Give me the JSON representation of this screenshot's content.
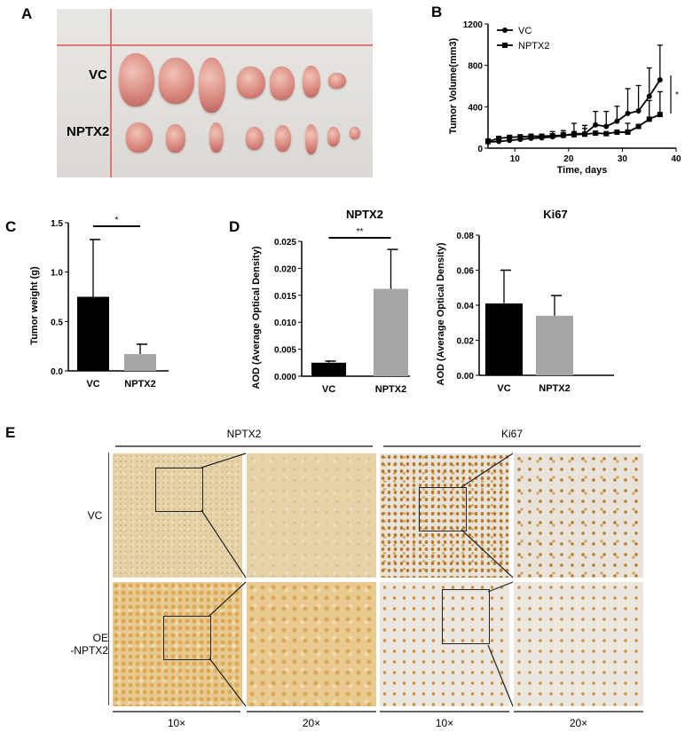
{
  "panels": {
    "a": "A",
    "b": "B",
    "c": "C",
    "d": "D",
    "e": "E"
  },
  "photo": {
    "row_labels": [
      "VC",
      "NPTX2"
    ],
    "vc_tumor_count": 7,
    "nptx2_tumor_count": 8
  },
  "chart_data": [
    {
      "id": "B",
      "type": "line",
      "xlabel": "Time, days",
      "ylabel": "Tumor Volume(mm3)",
      "xlim": [
        5,
        40
      ],
      "ylim": [
        0,
        1200
      ],
      "xticks": [
        10,
        20,
        30,
        40
      ],
      "yticks": [
        0,
        400,
        800,
        1200
      ],
      "x": [
        5,
        7,
        9,
        11,
        13,
        15,
        17,
        19,
        21,
        23,
        25,
        27,
        29,
        31,
        33,
        35,
        37
      ],
      "series": [
        {
          "name": "VC",
          "marker": "circle",
          "values": [
            60,
            65,
            75,
            85,
            95,
            100,
            110,
            120,
            140,
            140,
            225,
            210,
            260,
            335,
            360,
            500,
            660
          ],
          "error_upper": [
            90,
            90,
            100,
            105,
            120,
            125,
            160,
            170,
            240,
            220,
            355,
            355,
            405,
            575,
            605,
            775,
            995
          ]
        },
        {
          "name": "NPTX2",
          "marker": "square",
          "values": [
            65,
            95,
            105,
            110,
            115,
            115,
            120,
            125,
            130,
            135,
            145,
            140,
            155,
            155,
            210,
            280,
            325
          ],
          "error_upper": [
            80,
            110,
            120,
            125,
            135,
            135,
            140,
            150,
            160,
            190,
            150,
            150,
            165,
            240,
            210,
            460,
            545
          ]
        }
      ],
      "significance": "*",
      "legend": "top-left",
      "grid": false
    },
    {
      "id": "C",
      "type": "bar",
      "ylabel": "Tumor weight (g)",
      "ylim": [
        0,
        1.5
      ],
      "yticks": [
        "0.0",
        "0.5",
        "1.0",
        "1.5"
      ],
      "categories": [
        "VC",
        "NPTX2"
      ],
      "values": [
        0.75,
        0.17
      ],
      "error_upper": [
        1.33,
        0.27
      ],
      "colors": [
        "#000000",
        "#a6a6a6"
      ],
      "significance": "*"
    },
    {
      "id": "D1",
      "type": "bar",
      "title": "NPTX2",
      "ylabel": "AOD (Average Optical Density)",
      "ylim": [
        0,
        0.025
      ],
      "yticks": [
        "0.000",
        "0.005",
        "0.010",
        "0.015",
        "0.020",
        "0.025"
      ],
      "categories": [
        "VC",
        "NPTX2"
      ],
      "values": [
        0.0025,
        0.0162
      ],
      "error_upper": [
        0.0028,
        0.0235
      ],
      "colors": [
        "#000000",
        "#a6a6a6"
      ],
      "significance": "**"
    },
    {
      "id": "D2",
      "type": "bar",
      "title": "Ki67",
      "ylabel": "AOD (Average Optical Density)",
      "ylim": [
        0,
        0.08
      ],
      "yticks": [
        "0.00",
        "0.02",
        "0.04",
        "0.06",
        "0.08"
      ],
      "categories": [
        "VC",
        "NPTX2"
      ],
      "values": [
        0.041,
        0.034
      ],
      "error_upper": [
        0.06,
        0.0455
      ],
      "colors": [
        "#000000",
        "#a6a6a6"
      ],
      "significance": ""
    }
  ],
  "ihc": {
    "stains": [
      "NPTX2",
      "Ki67"
    ],
    "rows": [
      "VC",
      "OE",
      "-NPTX2"
    ],
    "magnifications": [
      "10×",
      "20×",
      "10×",
      "20×"
    ]
  }
}
